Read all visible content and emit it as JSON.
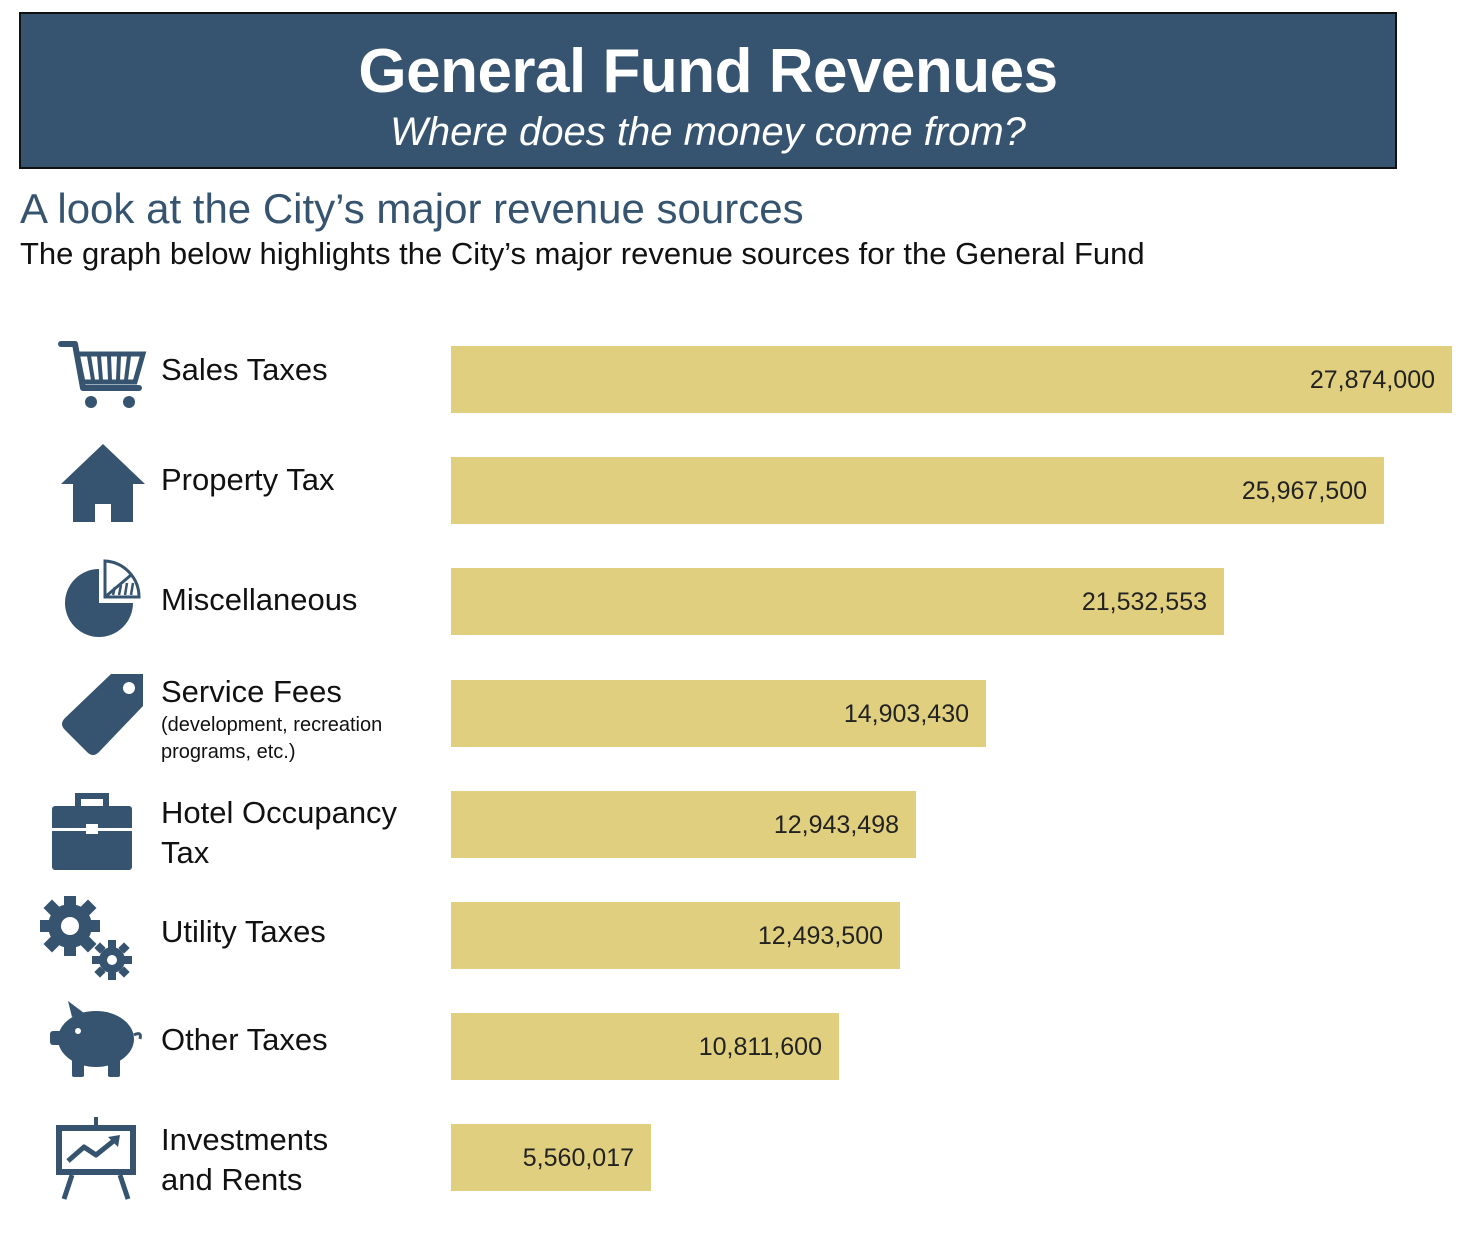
{
  "header": {
    "title": "General Fund Revenues",
    "subtitle": "Where does the money come from?"
  },
  "section": {
    "heading": "A look at the City’s major revenue sources",
    "description": "The graph below highlights the City’s major revenue sources for the General Fund"
  },
  "colors": {
    "banner": "#36546f",
    "bar": "#e0cf7e",
    "icon": "#36546f"
  },
  "chart_data": {
    "type": "bar",
    "orientation": "horizontal",
    "title": "",
    "xlabel": "",
    "ylabel": "",
    "grid": false,
    "legend": "none",
    "xlim": [
      0,
      27874000
    ],
    "categories": [
      "Sales Taxes",
      "Property Tax",
      "Miscellaneous",
      "Service Fees",
      "Hotel Occupancy Tax",
      "Utility Taxes",
      "Other Taxes",
      "Investments and Rents"
    ],
    "values": [
      27874000,
      25967500,
      21532553,
      14903430,
      12943498,
      12493500,
      10811600,
      5560017
    ],
    "rows": [
      {
        "label": "Sales Taxes",
        "note": "",
        "value_text": "27,874,000",
        "icon": "shopping-cart-icon"
      },
      {
        "label": "Property Tax",
        "note": "",
        "value_text": "25,967,500",
        "icon": "house-icon"
      },
      {
        "label": "Miscellaneous",
        "note": "",
        "value_text": "21,532,553",
        "icon": "pie-chart-icon"
      },
      {
        "label": "Service Fees",
        "note": "(development, recreation programs, etc.)",
        "value_text": "14,903,430",
        "icon": "price-tag-icon"
      },
      {
        "label": "Hotel Occupancy Tax",
        "note": "",
        "value_text": "12,943,498",
        "icon": "briefcase-icon"
      },
      {
        "label": "Utility Taxes",
        "note": "",
        "value_text": "12,493,500",
        "icon": "gears-icon"
      },
      {
        "label": "Other Taxes",
        "note": "",
        "value_text": "10,811,600",
        "icon": "piggy-bank-icon"
      },
      {
        "label": "Investments and Rents",
        "note": "",
        "value_text": "5,560,017",
        "icon": "presentation-chart-icon"
      }
    ]
  }
}
